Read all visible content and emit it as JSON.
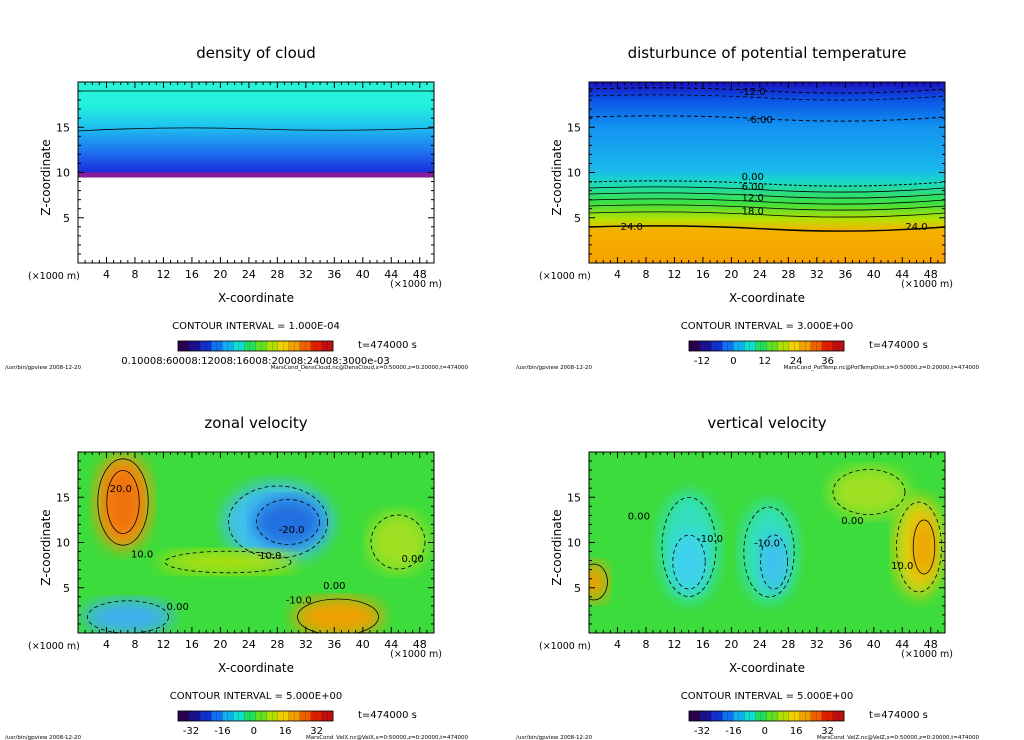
{
  "chart_data": [
    {
      "type": "heatmap",
      "title": "density of cloud",
      "xlabel": "X-coordinate",
      "ylabel": "Z-coordinate",
      "xunit": "(×1000 m)",
      "yunit": "(×1000 m)",
      "xlim": [
        0,
        50
      ],
      "ylim": [
        0,
        20
      ],
      "xticks": [
        4,
        8,
        12,
        16,
        20,
        24,
        28,
        32,
        36,
        40,
        44,
        48
      ],
      "yticks": [
        5,
        10,
        15
      ],
      "contour_interval": "CONTOUR INTERVAL = 1.000E-04",
      "time": "t=474000 s",
      "colorbar_labels": "0.10008:60008:12008:16008:20008:24008:3000e-03",
      "footer_left": "/usr/bin/gpview   2008-12-20",
      "footer_right": "MarsCond_DensCloud.nc@DensCloud,x=0:50000,z=0:20000,t=474000",
      "contour_labels": []
    },
    {
      "type": "heatmap",
      "title": "disturbunce of potential temperature",
      "xlabel": "X-coordinate",
      "ylabel": "Z-coordinate",
      "xunit": "(×1000 m)",
      "yunit": "(×1000 m)",
      "xlim": [
        0,
        50
      ],
      "ylim": [
        0,
        20
      ],
      "xticks": [
        4,
        8,
        12,
        16,
        20,
        24,
        28,
        32,
        36,
        40,
        44,
        48
      ],
      "yticks": [
        5,
        10,
        15
      ],
      "contour_interval": "CONTOUR INTERVAL = 3.000E+00",
      "time": "t=474000 s",
      "colorbar_ticks": [
        "-12",
        "0",
        "12",
        "24",
        "36"
      ],
      "footer_left": "/usr/bin/gpview   2008-12-20",
      "footer_right": "MarsCond_PotTemp.nc@PotTempDist,x=0:50000,z=0:20000,t=474000",
      "contour_labels": [
        {
          "text": "-12.0",
          "x": 23,
          "z": 19
        },
        {
          "text": "-6.00",
          "x": 24,
          "z": 15.9
        },
        {
          "text": "0.00",
          "x": 23,
          "z": 9.6
        },
        {
          "text": "6.00",
          "x": 23,
          "z": 8.5
        },
        {
          "text": "12.0",
          "x": 23,
          "z": 7.3
        },
        {
          "text": "18.0",
          "x": 23,
          "z": 5.8
        },
        {
          "text": "24.0",
          "x": 6,
          "z": 4.1
        },
        {
          "text": "24.0",
          "x": 46,
          "z": 4.1
        }
      ]
    },
    {
      "type": "heatmap",
      "title": "zonal velocity",
      "xlabel": "X-coordinate",
      "ylabel": "Z-coordinate",
      "xunit": "(×1000 m)",
      "yunit": "(×1000 m)",
      "xlim": [
        0,
        50
      ],
      "ylim": [
        0,
        20
      ],
      "xticks": [
        4,
        8,
        12,
        16,
        20,
        24,
        28,
        32,
        36,
        40,
        44,
        48
      ],
      "yticks": [
        5,
        10,
        15
      ],
      "contour_interval": "CONTOUR INTERVAL = 5.000E+00",
      "time": "t=474000 s",
      "colorbar_ticks": [
        "-32",
        "-16",
        "0",
        "16",
        "32"
      ],
      "footer_left": "/usr/bin/gpview   2008-12-20",
      "footer_right": "MarsCond_VelX.nc@VelX,x=0:50000,z=0:20000,t=474000",
      "contour_labels": [
        {
          "text": "20.0",
          "x": 6,
          "z": 16
        },
        {
          "text": "-20.0",
          "x": 30,
          "z": 11.5
        },
        {
          "text": "10.0",
          "x": 9,
          "z": 8.8
        },
        {
          "text": "10.0",
          "x": 27,
          "z": 8.6
        },
        {
          "text": "0.00",
          "x": 36,
          "z": 5.3
        },
        {
          "text": "0.00",
          "x": 47,
          "z": 8.3
        },
        {
          "text": "-10.0",
          "x": 31,
          "z": 3.7
        },
        {
          "text": "0.00",
          "x": 14,
          "z": 3
        }
      ]
    },
    {
      "type": "heatmap",
      "title": "vertical velocity",
      "xlabel": "X-coordinate",
      "ylabel": "Z-coordinate",
      "xunit": "(×1000 m)",
      "yunit": "(×1000 m)",
      "xlim": [
        0,
        50
      ],
      "ylim": [
        0,
        20
      ],
      "xticks": [
        4,
        8,
        12,
        16,
        20,
        24,
        28,
        32,
        36,
        40,
        44,
        48
      ],
      "yticks": [
        5,
        10,
        15
      ],
      "contour_interval": "CONTOUR INTERVAL = 5.000E+00",
      "time": "t=474000 s",
      "colorbar_ticks": [
        "-32",
        "-16",
        "0",
        "16",
        "32"
      ],
      "footer_left": "/usr/bin/gpview   2008-12-20",
      "footer_right": "MarsCond_VelZ.nc@VelZ,x=0:50000,z=0:20000,t=474000",
      "contour_labels": [
        {
          "text": "0.00",
          "x": 7,
          "z": 13
        },
        {
          "text": "-10.0",
          "x": 17,
          "z": 10.5
        },
        {
          "text": "-10.0",
          "x": 25,
          "z": 10
        },
        {
          "text": "0.00",
          "x": 37,
          "z": 12.5
        },
        {
          "text": "10.0",
          "x": 44,
          "z": 7.5
        }
      ]
    }
  ]
}
